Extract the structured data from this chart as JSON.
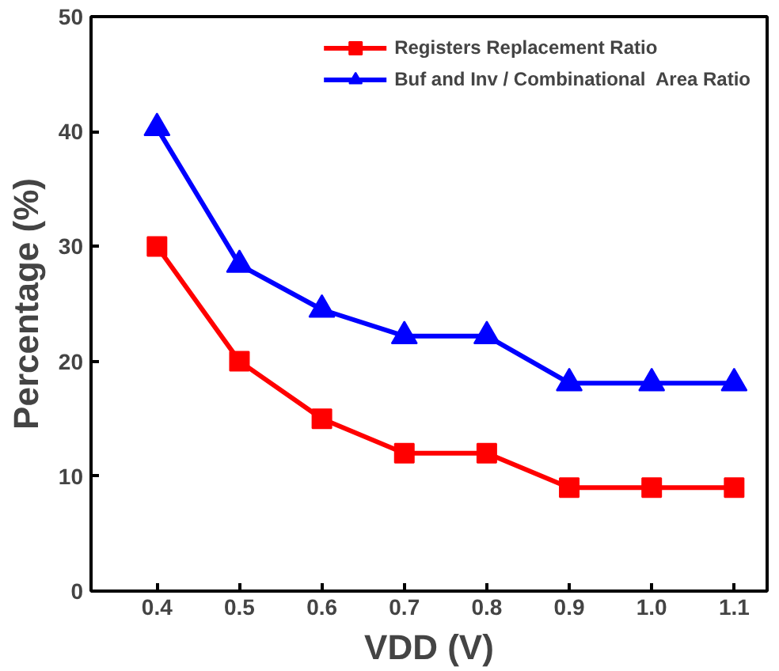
{
  "chart_data": {
    "type": "line",
    "xlabel": "VDD (V)",
    "ylabel": "Percentage (%)",
    "x": [
      0.4,
      0.5,
      0.6,
      0.7,
      0.8,
      0.9,
      1.0,
      1.1
    ],
    "series": [
      {
        "name": "Registers Replacement Ratio",
        "color": "#ff0000",
        "marker": "square",
        "values": [
          30,
          20,
          15,
          12,
          12,
          9,
          9,
          9
        ]
      },
      {
        "name": "Buf and Inv / Combinational  Area Ratio",
        "color": "#0000ff",
        "marker": "triangle",
        "values": [
          40.3,
          28.4,
          24.5,
          22.2,
          22.2,
          18.1,
          18.1,
          18.1
        ]
      }
    ],
    "xlim": [
      0.32,
      1.14
    ],
    "ylim": [
      0,
      50
    ],
    "xticks": [
      {
        "value": 0.4,
        "label": "0.4"
      },
      {
        "value": 0.5,
        "label": "0.5"
      },
      {
        "value": 0.6,
        "label": "0.6"
      },
      {
        "value": 0.7,
        "label": "0.7"
      },
      {
        "value": 0.8,
        "label": "0.8"
      },
      {
        "value": 0.9,
        "label": "0.9"
      },
      {
        "value": 1.0,
        "label": "1.0"
      },
      {
        "value": 1.1,
        "label": "1.1"
      }
    ],
    "yticks": [
      0,
      10,
      20,
      30,
      40,
      50
    ],
    "grid": false,
    "legend": "top right",
    "line_style": "solid"
  }
}
